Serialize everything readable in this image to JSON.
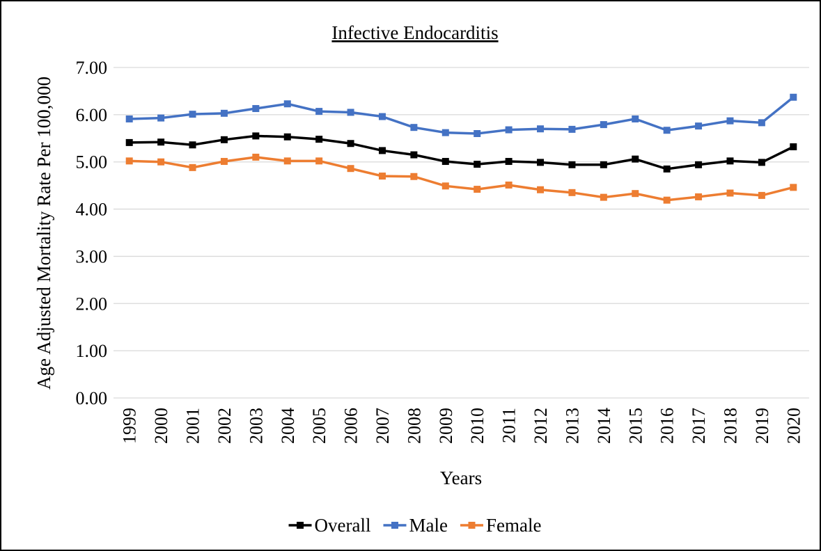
{
  "chart_data": {
    "type": "line",
    "title": "Infective Endocarditis",
    "x_label": "Years",
    "y_label": "Age Adjusted Mortality Rate Per 100,000",
    "categories": [
      "1999",
      "2000",
      "2001",
      "2002",
      "2003",
      "2004",
      "2005",
      "2006",
      "2007",
      "2008",
      "2009",
      "2010",
      "2011",
      "2012",
      "2013",
      "2014",
      "2015",
      "2016",
      "2017",
      "2018",
      "2019",
      "2020"
    ],
    "series": [
      {
        "name": "Overall",
        "color": "#000000",
        "values": [
          5.41,
          5.42,
          5.36,
          5.47,
          5.55,
          5.53,
          5.48,
          5.39,
          5.24,
          5.15,
          5.01,
          4.95,
          5.01,
          4.99,
          4.94,
          4.94,
          5.06,
          4.85,
          4.94,
          5.02,
          4.99,
          5.32
        ]
      },
      {
        "name": "Male",
        "color": "#4472c4",
        "values": [
          5.91,
          5.93,
          6.01,
          6.03,
          6.13,
          6.23,
          6.07,
          6.05,
          5.96,
          5.73,
          5.62,
          5.6,
          5.68,
          5.7,
          5.69,
          5.79,
          5.91,
          5.67,
          5.76,
          5.87,
          5.83,
          6.37
        ]
      },
      {
        "name": "Female",
        "color": "#ed7d31",
        "values": [
          5.02,
          5.0,
          4.88,
          5.01,
          5.1,
          5.02,
          5.02,
          4.86,
          4.7,
          4.69,
          4.49,
          4.42,
          4.51,
          4.41,
          4.35,
          4.25,
          4.33,
          4.19,
          4.26,
          4.34,
          4.29,
          4.46
        ]
      }
    ],
    "ylim": [
      0,
      7
    ],
    "yticks": [
      {
        "value": 0,
        "label": "0.00"
      },
      {
        "value": 1,
        "label": "1.00"
      },
      {
        "value": 2,
        "label": "2.00"
      },
      {
        "value": 3,
        "label": "3.00"
      },
      {
        "value": 4,
        "label": "4.00"
      },
      {
        "value": 5,
        "label": "5.00"
      },
      {
        "value": 6,
        "label": "6.00"
      },
      {
        "value": 7,
        "label": "7.00"
      }
    ],
    "grid": true,
    "legend": "bottom"
  }
}
